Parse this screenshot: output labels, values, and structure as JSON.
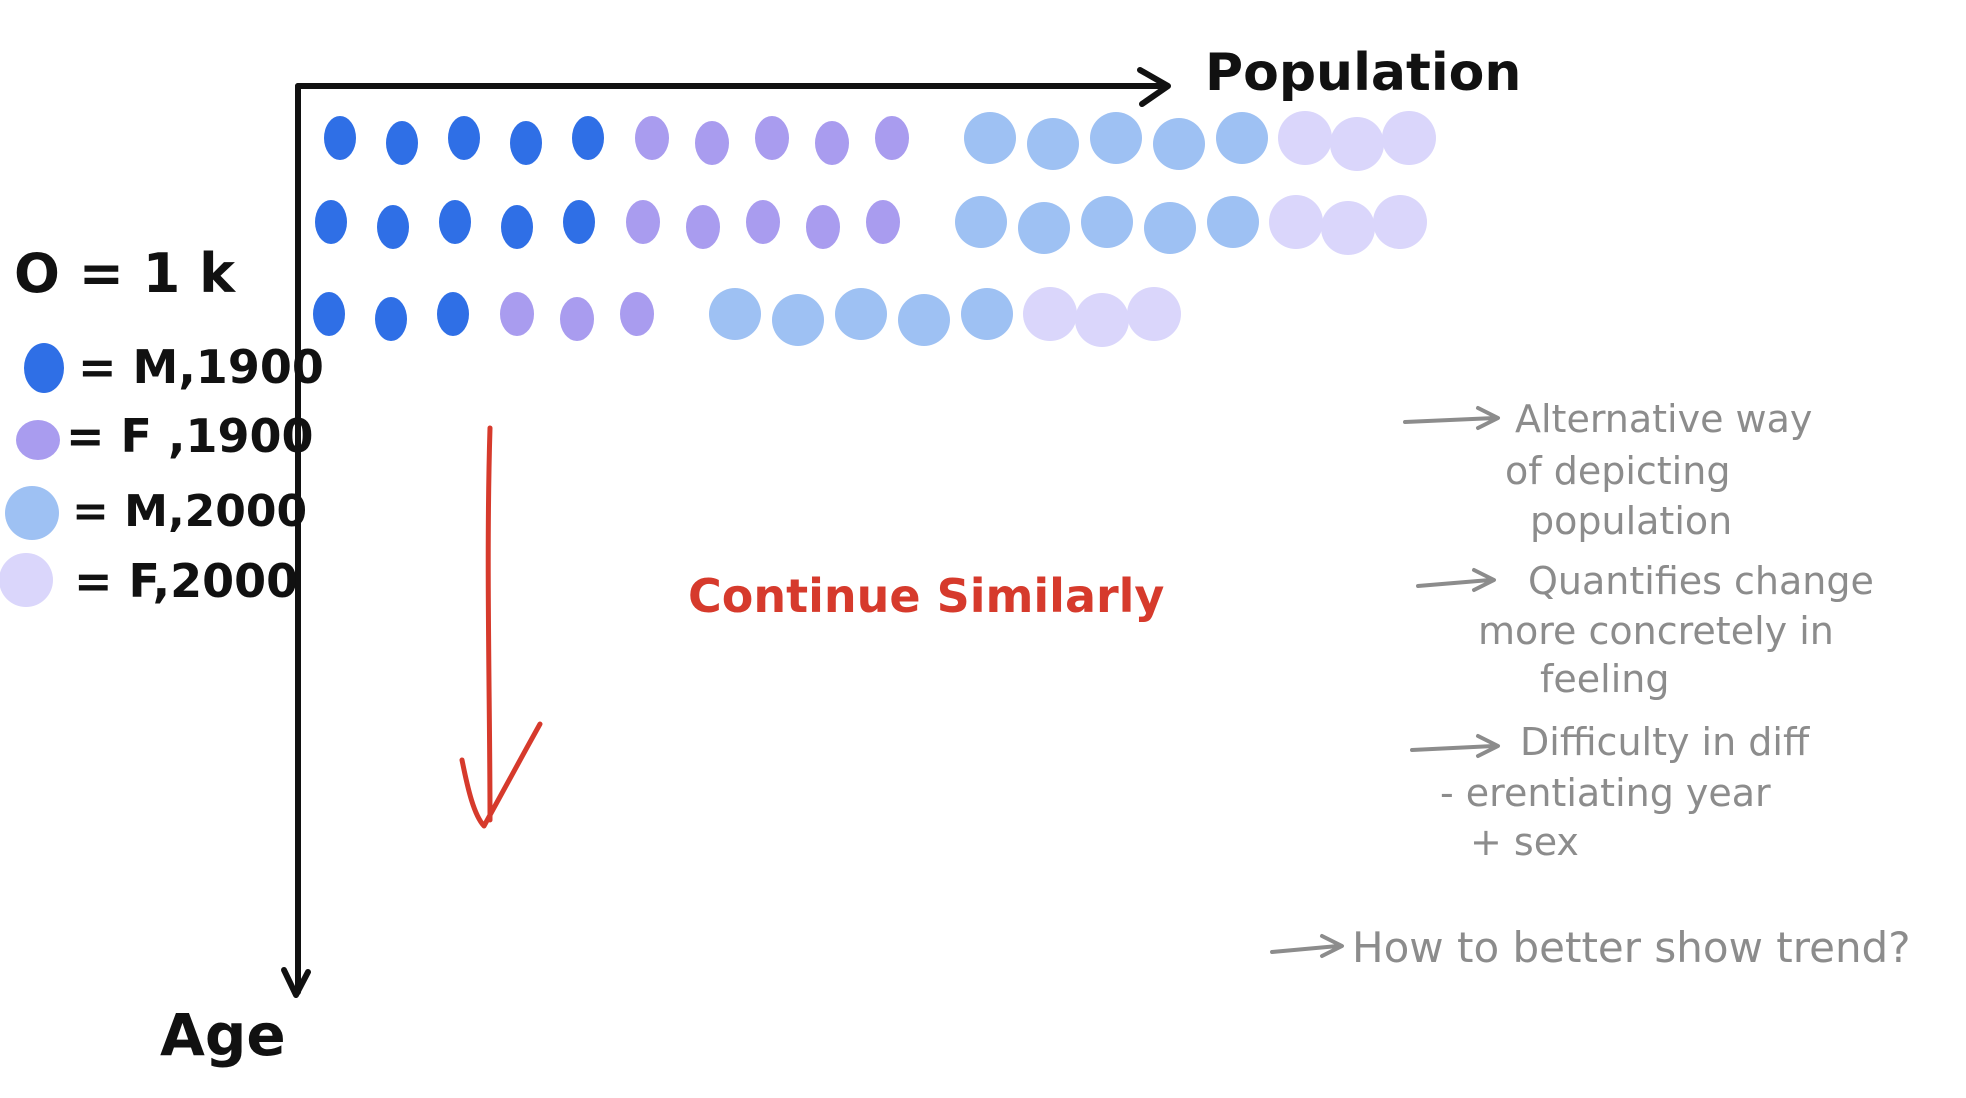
{
  "colors": {
    "ink": "#111111",
    "m1900": "#2f6fe6",
    "f1900": "#a99cef",
    "m2000": "#9ec1f3",
    "f2000": "#dad6fb",
    "arrow_red": "#d63a2c",
    "note_gray": "#8c8c8c"
  },
  "axes": {
    "x_label": "Population",
    "y_label": "Age"
  },
  "legend": {
    "unit": "O = 1 k",
    "items": [
      {
        "key": "m1900",
        "label": "= M,1900"
      },
      {
        "key": "f1900",
        "label": "= F ,1900"
      },
      {
        "key": "m2000",
        "label": "= M,2000"
      },
      {
        "key": "f2000",
        "label": "= F,2000"
      }
    ]
  },
  "rows": [
    {
      "m1900": 5,
      "f1900": 5,
      "m2000": 5,
      "f2000": 3
    },
    {
      "m1900": 5,
      "f1900": 5,
      "m2000": 5,
      "f2000": 3
    },
    {
      "m1900": 3,
      "f1900": 3,
      "m2000": 5,
      "f2000": 3
    }
  ],
  "annotation": "Continue Similarly",
  "notes": [
    [
      "Alternative way",
      "of depicting",
      "population"
    ],
    [
      "Quantifies change",
      "more concretely in",
      "feeling"
    ],
    [
      "Difficulty in diff",
      "- erentiating year",
      "+ sex"
    ],
    [
      "How to better show trend?"
    ]
  ]
}
